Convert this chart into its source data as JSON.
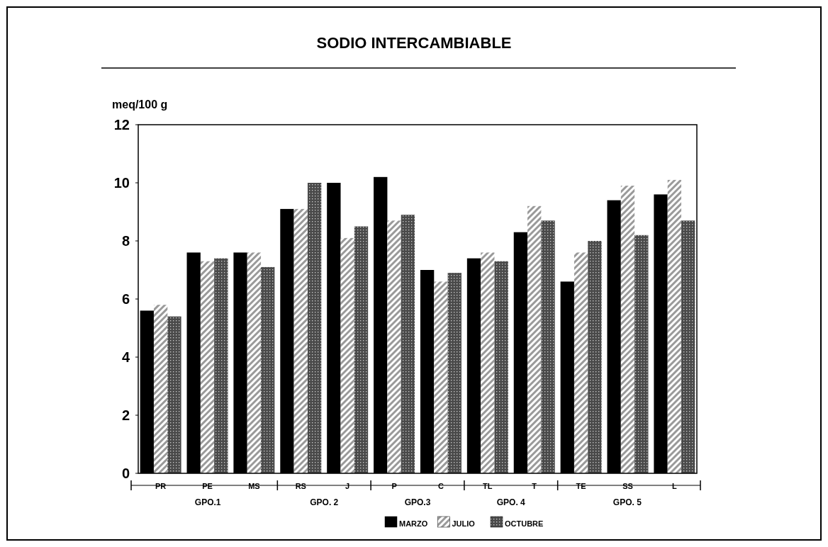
{
  "chart_data": {
    "type": "bar",
    "title": "SODIO INTERCAMBIABLE",
    "ylabel": "meq/100 g",
    "categories": [
      "PR",
      "PE",
      "MS",
      "RS",
      "J",
      "P",
      "C",
      "TL",
      "T",
      "TE",
      "SS",
      "L"
    ],
    "series": [
      {
        "name": "MARZO",
        "color": "#000000",
        "values": [
          5.6,
          7.6,
          7.6,
          9.1,
          10.0,
          10.2,
          7.0,
          7.4,
          8.3,
          6.6,
          9.4,
          9.6
        ]
      },
      {
        "name": "JULIO",
        "color": "#9a9a9a",
        "values": [
          5.8,
          7.3,
          7.6,
          9.1,
          8.1,
          8.7,
          6.6,
          7.6,
          9.2,
          7.6,
          9.9,
          10.1
        ]
      },
      {
        "name": "OCTUBRE",
        "color": "#4a4a4a",
        "values": [
          5.4,
          7.4,
          7.1,
          10.0,
          8.5,
          8.9,
          6.9,
          7.3,
          8.7,
          8.0,
          8.2,
          8.7
        ]
      }
    ],
    "ylim": [
      0,
      12
    ],
    "yticks": [
      0,
      2,
      4,
      6,
      8,
      10,
      12
    ],
    "grid": false,
    "legend": "bottom",
    "annotations": [
      "GPO.1",
      "GPO. 2",
      "GPO.3",
      "GPO. 4",
      "GPO. 5"
    ]
  }
}
